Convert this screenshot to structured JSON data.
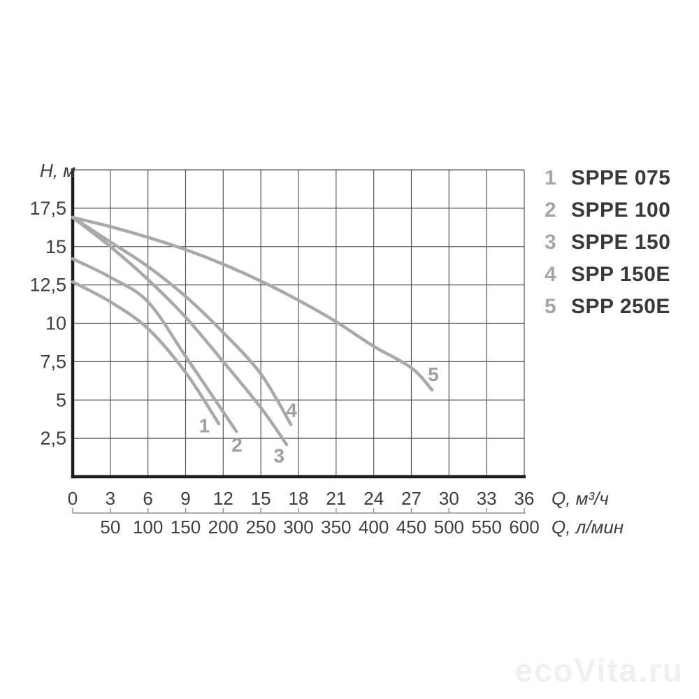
{
  "watermark": {
    "text": "ecoVita.ru"
  },
  "legend": {
    "items": [
      {
        "num": "1",
        "label": "SPPE 075"
      },
      {
        "num": "2",
        "label": "SPPE 100"
      },
      {
        "num": "3",
        "label": "SPPE 150"
      },
      {
        "num": "4",
        "label": "SPP 150E"
      },
      {
        "num": "5",
        "label": "SPP 250E"
      }
    ]
  },
  "chart_data": {
    "type": "line",
    "grid": true,
    "legend_position": "right",
    "y_axis": {
      "label": "H, м",
      "range": [
        0,
        20
      ],
      "grid_step": 2.5,
      "ticks": [
        {
          "value": 2.5,
          "label": "2,5"
        },
        {
          "value": 5,
          "label": "5"
        },
        {
          "value": 7.5,
          "label": "7,5"
        },
        {
          "value": 10,
          "label": "10"
        },
        {
          "value": 12.5,
          "label": "12,5"
        },
        {
          "value": 15,
          "label": "15"
        },
        {
          "value": 17.5,
          "label": "17,5"
        }
      ]
    },
    "x_axis": {
      "label": "Q, м³/ч",
      "range": [
        0,
        36
      ],
      "grid_step": 3,
      "ticks": [
        {
          "value": 0,
          "label": "0"
        },
        {
          "value": 3,
          "label": "3"
        },
        {
          "value": 6,
          "label": "6"
        },
        {
          "value": 9,
          "label": "9"
        },
        {
          "value": 12,
          "label": "12"
        },
        {
          "value": 15,
          "label": "15"
        },
        {
          "value": 18,
          "label": "18"
        },
        {
          "value": 21,
          "label": "21"
        },
        {
          "value": 24,
          "label": "24"
        },
        {
          "value": 27,
          "label": "27"
        },
        {
          "value": 30,
          "label": "30"
        },
        {
          "value": 33,
          "label": "33"
        },
        {
          "value": 36,
          "label": "36"
        }
      ]
    },
    "x_axis2": {
      "label": "Q, л/мин",
      "range": [
        0,
        600
      ],
      "lpm_per_m3h": 16.6667,
      "ticks": [
        {
          "value": 50,
          "label": "50"
        },
        {
          "value": 100,
          "label": "100"
        },
        {
          "value": 150,
          "label": "150"
        },
        {
          "value": 200,
          "label": "200"
        },
        {
          "value": 250,
          "label": "250"
        },
        {
          "value": 300,
          "label": "300"
        },
        {
          "value": 350,
          "label": "350"
        },
        {
          "value": 400,
          "label": "400"
        },
        {
          "value": 450,
          "label": "450"
        },
        {
          "value": 500,
          "label": "500"
        },
        {
          "value": 550,
          "label": "550"
        },
        {
          "value": 600,
          "label": "600"
        }
      ]
    },
    "series": [
      {
        "id": "1",
        "name": "SPPE 075",
        "label_at": [
          10.5,
          3.35
        ],
        "points": [
          [
            0,
            12.7
          ],
          [
            3,
            11.4
          ],
          [
            6,
            9.65
          ],
          [
            9,
            6.8
          ],
          [
            11.65,
            3.45
          ]
        ]
      },
      {
        "id": "2",
        "name": "SPPE 100",
        "label_at": [
          13.1,
          2.1
        ],
        "points": [
          [
            0,
            14.2
          ],
          [
            3,
            13.0
          ],
          [
            6,
            11.4
          ],
          [
            9,
            7.85
          ],
          [
            13.05,
            2.95
          ]
        ]
      },
      {
        "id": "3",
        "name": "SPPE 150",
        "label_at": [
          16.45,
          1.4
        ],
        "points": [
          [
            0,
            16.9
          ],
          [
            3,
            15.0
          ],
          [
            6,
            12.85
          ],
          [
            9,
            10.4
          ],
          [
            12,
            7.5
          ],
          [
            15,
            4.5
          ],
          [
            17.05,
            2.1
          ]
        ]
      },
      {
        "id": "4",
        "name": "SPP 150E",
        "label_at": [
          17.45,
          4.35
        ],
        "points": [
          [
            0,
            16.9
          ],
          [
            3,
            15.3
          ],
          [
            6,
            13.7
          ],
          [
            9,
            11.75
          ],
          [
            12,
            9.4
          ],
          [
            15,
            6.7
          ],
          [
            17.4,
            3.4
          ]
        ]
      },
      {
        "id": "5",
        "name": "SPP 250E",
        "label_at": [
          28.75,
          6.7
        ],
        "points": [
          [
            0,
            16.9
          ],
          [
            3,
            16.3
          ],
          [
            6,
            15.6
          ],
          [
            9,
            14.8
          ],
          [
            12,
            13.85
          ],
          [
            15,
            12.75
          ],
          [
            18,
            11.5
          ],
          [
            21,
            10.1
          ],
          [
            24,
            8.5
          ],
          [
            27,
            7.1
          ],
          [
            28.65,
            5.65
          ]
        ]
      }
    ],
    "colors": {
      "curve": "#a7a9ac",
      "grid": "#55575a",
      "frame": "#1a1b1d",
      "tick_text": "#3b3e44",
      "curve_label": "#9aa0a6",
      "axis2": "#8d9297"
    }
  }
}
